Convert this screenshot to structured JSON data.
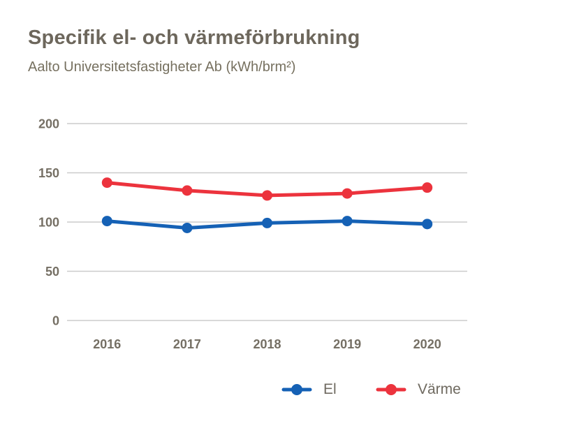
{
  "header": {
    "title": "Specifik el- och värmeförbrukning",
    "subtitle": "Aalto Universitetsfastigheter Ab (kWh/brm²)"
  },
  "chart_data": {
    "type": "line",
    "title": "Specifik el- och värmeförbrukning",
    "subtitle": "Aalto Universitetsfastigheter Ab (kWh/brm²)",
    "categories": [
      "2016",
      "2017",
      "2018",
      "2019",
      "2020"
    ],
    "series": [
      {
        "name": "El",
        "color": "#1561b5",
        "values": [
          101,
          94,
          99,
          101,
          98
        ]
      },
      {
        "name": "Värme",
        "color": "#ec333d",
        "values": [
          140,
          132,
          127,
          129,
          135
        ]
      }
    ],
    "xlabel": "",
    "ylabel": "kWh/brm²",
    "ylim": [
      0,
      200
    ],
    "yticks": [
      0,
      50,
      100,
      150,
      200
    ],
    "grid": true,
    "legend_position": "bottom-right",
    "marker": "circle"
  },
  "colors": {
    "title_text": "#6d675c",
    "subtitle_text": "#76705f",
    "axis_text": "#756f64",
    "legend_text": "#6f6a60",
    "gridline": "#cbcbcb",
    "background": "#ffffff",
    "series_el": "#1561b5",
    "series_varme": "#ec333d"
  }
}
